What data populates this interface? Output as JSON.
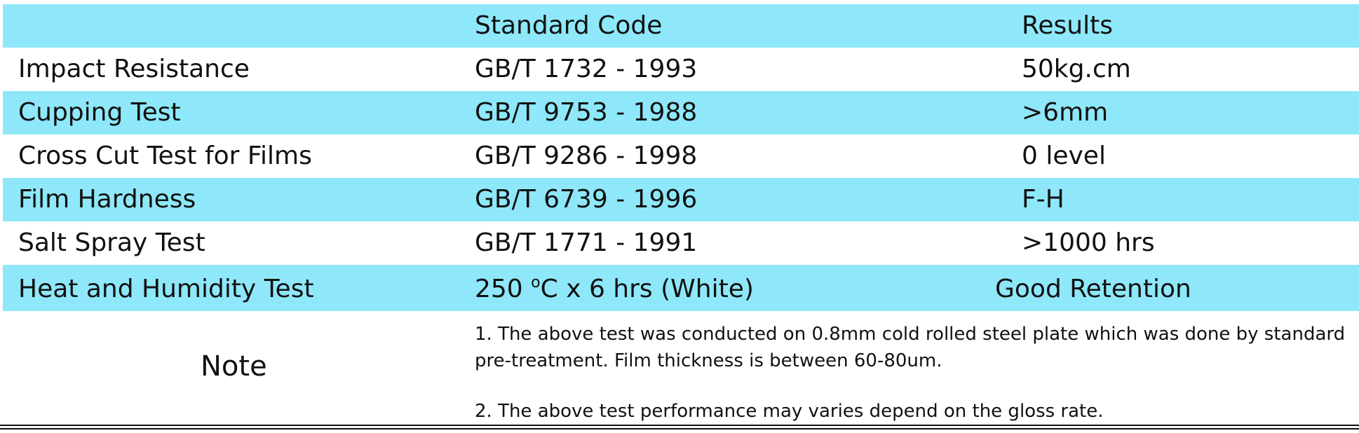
{
  "header": {
    "col1": "",
    "col2": "Standard Code",
    "col3": "Results"
  },
  "rows": [
    {
      "test": "Impact Resistance",
      "standard": "GB/T 1732 - 1993",
      "result": "50kg.cm"
    },
    {
      "test": "Cupping Test",
      "standard": "GB/T 9753 - 1988",
      "result": ">6mm"
    },
    {
      "test": "Cross Cut Test for Films",
      "standard": "GB/T 9286 - 1998",
      "result": "0 level"
    },
    {
      "test": "Film Hardness",
      "standard": "GB/T 6739 - 1996",
      "result": "F-H"
    },
    {
      "test": "Salt Spray Test",
      "standard": "GB/T 1771 - 1991",
      "result": ">1000 hrs"
    },
    {
      "test": "Heat and Humidity Test",
      "standard_prefix": "250 ",
      "standard_sup": "o",
      "standard_suffix": "C x 6 hrs (White)",
      "result": "Good Retention"
    }
  ],
  "note": {
    "label": "Note",
    "line1": "1. The above test was conducted on 0.8mm cold rolled steel plate which was done by standard",
    "line2": "pre-treatment. Film thickness is between 60-80um.",
    "line3": "2. The above test performance may varies depend on the gloss rate."
  },
  "colors": {
    "row_shade": "#8ee8f9",
    "text": "#111111"
  }
}
